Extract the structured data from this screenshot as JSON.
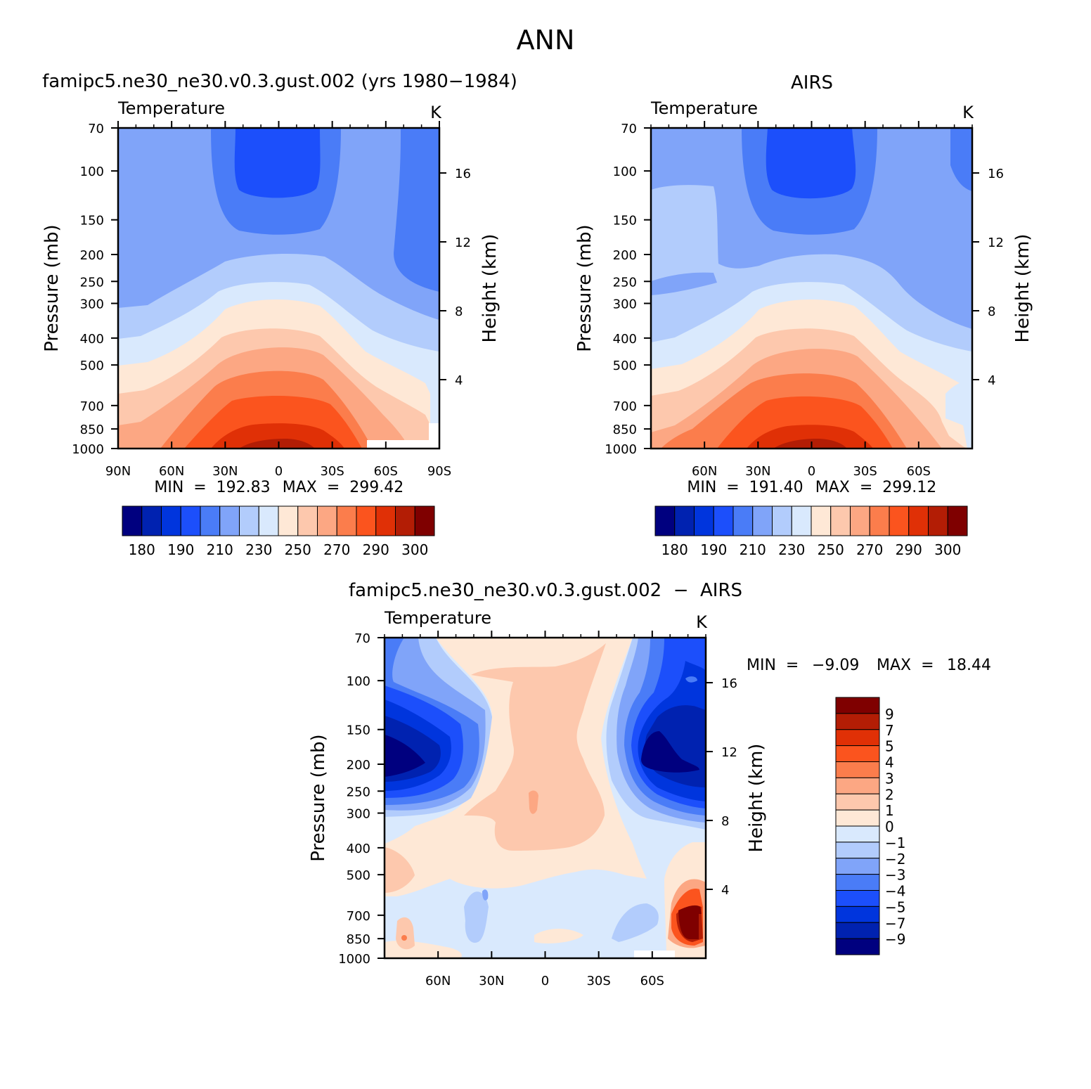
{
  "page": {
    "title": "ANN"
  },
  "colors": {
    "temperature": [
      "#00007f",
      "#0022b0",
      "#0035dd",
      "#1c4ffb",
      "#4a7cf7",
      "#80a4f9",
      "#b2ccfc",
      "#d9e9fd",
      "#fee8d6",
      "#fdc8ad",
      "#fca783",
      "#fb7d4c",
      "#fb541e",
      "#e03006",
      "#b31d05",
      "#7f0000"
    ],
    "difference": [
      "#00007f",
      "#0022b0",
      "#0035dd",
      "#1c4ffb",
      "#4a7cf7",
      "#80a4f9",
      "#b2ccfc",
      "#d9e9fd",
      "#fee8d6",
      "#fdc8ad",
      "#fca783",
      "#fb7d4c",
      "#fb541e",
      "#e03006",
      "#b31d05",
      "#7f0000"
    ]
  },
  "chart_data": [
    {
      "type": "contour",
      "id": "model",
      "title": "famipc5.ne30_ne30.v0.3.gust.002 (yrs 1980−1984)",
      "variable_label": "Temperature",
      "units": "K",
      "ylabel": "Pressure (mb)",
      "y2label": "Height (km)",
      "x_ticks": [
        "90N",
        "60N",
        "30N",
        "0",
        "30S",
        "60S",
        "90S"
      ],
      "xlim": [
        90,
        -90
      ],
      "y_ticks": [
        70,
        100,
        150,
        200,
        250,
        300,
        400,
        500,
        700,
        850,
        1000
      ],
      "y2_ticks": [
        16,
        12,
        8,
        4
      ],
      "min_label": "MIN  =  192.83",
      "max_label": "MAX  =  299.42",
      "min": 192.83,
      "max": 299.42,
      "colorbar_labels": [
        "180",
        "190",
        "210",
        "230",
        "250",
        "270",
        "290",
        "300"
      ]
    },
    {
      "type": "contour",
      "id": "obs",
      "title": "AIRS",
      "variable_label": "Temperature",
      "units": "K",
      "ylabel": "Pressure (mb)",
      "y2label": "Height (km)",
      "x_ticks": [
        "60N",
        "30N",
        "0",
        "30S",
        "60S"
      ],
      "xlim": [
        90,
        -90
      ],
      "y_ticks": [
        70,
        100,
        150,
        200,
        250,
        300,
        400,
        500,
        700,
        850,
        1000
      ],
      "y2_ticks": [
        16,
        12,
        8,
        4
      ],
      "min_label": "MIN  =  191.40",
      "max_label": "MAX  =  299.12",
      "min": 191.4,
      "max": 299.12,
      "colorbar_labels": [
        "180",
        "190",
        "210",
        "230",
        "250",
        "270",
        "290",
        "300"
      ]
    },
    {
      "type": "contour",
      "id": "diff",
      "title": "famipc5.ne30_ne30.v0.3.gust.002  −  AIRS",
      "variable_label": "Temperature",
      "units": "K",
      "ylabel": "Pressure (mb)",
      "y2label": "Height (km)",
      "x_ticks": [
        "60N",
        "30N",
        "0",
        "30S",
        "60S"
      ],
      "xlim": [
        90,
        -90
      ],
      "y_ticks": [
        70,
        100,
        150,
        200,
        250,
        300,
        400,
        500,
        700,
        850,
        1000
      ],
      "y2_ticks": [
        16,
        12,
        8,
        4
      ],
      "min_label": "MIN  =",
      "min_value": "−9.09",
      "max_label": "MAX  =",
      "max_value": "18.44",
      "min": -9.09,
      "max": 18.44,
      "colorbar_labels": [
        "9",
        "7",
        "5",
        "4",
        "3",
        "2",
        "1",
        "0",
        "−1",
        "−2",
        "−3",
        "−4",
        "−5",
        "−7",
        "−9"
      ]
    }
  ]
}
